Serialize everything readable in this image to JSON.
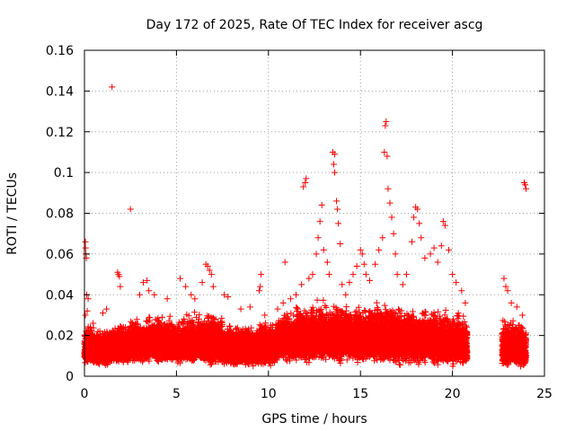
{
  "chart_data": {
    "type": "scatter",
    "title": "Day 172 of 2025, Rate Of TEC Index for receiver ascg",
    "xlabel": "GPS time / hours",
    "ylabel": "ROTI / TECUs",
    "xlim": [
      0,
      25
    ],
    "ylim": [
      0,
      0.16
    ],
    "xticks": [
      "0",
      "5",
      "10",
      "15",
      "20",
      "25"
    ],
    "yticks": [
      "0",
      "0.02",
      "0.04",
      "0.06",
      "0.08",
      "0.1",
      "0.12",
      "0.14",
      "0.16"
    ],
    "xtick_values": [
      0,
      5,
      10,
      15,
      20,
      25
    ],
    "ytick_values": [
      0,
      0.02,
      0.04,
      0.06,
      0.08,
      0.1,
      0.12,
      0.14,
      0.16
    ],
    "grid": true,
    "marker": "+",
    "color": "#ff0000",
    "series": [
      {
        "points": [
          [
            0.05,
            0.066
          ],
          [
            0.06,
            0.063
          ],
          [
            0.08,
            0.06
          ],
          [
            0.1,
            0.058
          ],
          [
            0.12,
            0.04
          ],
          [
            0.2,
            0.038
          ],
          [
            0.15,
            0.032
          ],
          [
            0.05,
            0.03
          ],
          [
            1.0,
            0.031
          ],
          [
            1.2,
            0.033
          ],
          [
            1.5,
            0.142
          ],
          [
            1.8,
            0.051
          ],
          [
            1.85,
            0.05
          ],
          [
            1.9,
            0.049
          ],
          [
            1.95,
            0.044
          ],
          [
            2.5,
            0.082
          ],
          [
            3.0,
            0.04
          ],
          [
            3.2,
            0.046
          ],
          [
            3.4,
            0.047
          ],
          [
            3.5,
            0.042
          ],
          [
            3.8,
            0.04
          ],
          [
            4.5,
            0.038
          ],
          [
            5.2,
            0.048
          ],
          [
            5.5,
            0.044
          ],
          [
            5.8,
            0.04
          ],
          [
            6.0,
            0.038
          ],
          [
            6.4,
            0.046
          ],
          [
            6.6,
            0.055
          ],
          [
            6.7,
            0.054
          ],
          [
            6.8,
            0.052
          ],
          [
            6.9,
            0.05
          ],
          [
            7.0,
            0.044
          ],
          [
            7.6,
            0.04
          ],
          [
            7.8,
            0.039
          ],
          [
            8.5,
            0.033
          ],
          [
            9.0,
            0.034
          ],
          [
            9.5,
            0.042
          ],
          [
            9.55,
            0.044
          ],
          [
            9.6,
            0.05
          ],
          [
            9.8,
            0.03
          ],
          [
            10.5,
            0.033
          ],
          [
            10.8,
            0.036
          ],
          [
            10.9,
            0.056
          ],
          [
            11.2,
            0.038
          ],
          [
            11.5,
            0.04
          ],
          [
            11.8,
            0.045
          ],
          [
            11.9,
            0.093
          ],
          [
            12.0,
            0.095
          ],
          [
            12.05,
            0.097
          ],
          [
            12.2,
            0.048
          ],
          [
            12.4,
            0.05
          ],
          [
            12.6,
            0.06
          ],
          [
            12.7,
            0.068
          ],
          [
            12.8,
            0.076
          ],
          [
            12.9,
            0.084
          ],
          [
            13.0,
            0.062
          ],
          [
            13.2,
            0.056
          ],
          [
            13.3,
            0.05
          ],
          [
            13.5,
            0.11
          ],
          [
            13.6,
            0.109
          ],
          [
            13.55,
            0.104
          ],
          [
            13.6,
            0.1
          ],
          [
            13.7,
            0.086
          ],
          [
            13.75,
            0.082
          ],
          [
            13.8,
            0.075
          ],
          [
            13.9,
            0.065
          ],
          [
            14.0,
            0.045
          ],
          [
            14.2,
            0.04
          ],
          [
            14.4,
            0.046
          ],
          [
            14.6,
            0.05
          ],
          [
            14.8,
            0.054
          ],
          [
            15.0,
            0.062
          ],
          [
            15.1,
            0.06
          ],
          [
            15.2,
            0.055
          ],
          [
            15.3,
            0.05
          ],
          [
            15.5,
            0.047
          ],
          [
            15.8,
            0.055
          ],
          [
            16.0,
            0.062
          ],
          [
            16.2,
            0.068
          ],
          [
            16.3,
            0.11
          ],
          [
            16.35,
            0.123
          ],
          [
            16.4,
            0.125
          ],
          [
            16.45,
            0.108
          ],
          [
            16.5,
            0.092
          ],
          [
            16.6,
            0.085
          ],
          [
            16.7,
            0.078
          ],
          [
            16.8,
            0.07
          ],
          [
            16.9,
            0.06
          ],
          [
            17.0,
            0.05
          ],
          [
            17.3,
            0.045
          ],
          [
            17.5,
            0.05
          ],
          [
            17.8,
            0.066
          ],
          [
            17.9,
            0.078
          ],
          [
            18.0,
            0.083
          ],
          [
            18.1,
            0.082
          ],
          [
            18.2,
            0.075
          ],
          [
            18.3,
            0.068
          ],
          [
            18.5,
            0.058
          ],
          [
            18.8,
            0.06
          ],
          [
            19.0,
            0.063
          ],
          [
            19.2,
            0.056
          ],
          [
            19.4,
            0.064
          ],
          [
            19.5,
            0.076
          ],
          [
            19.6,
            0.074
          ],
          [
            19.8,
            0.062
          ],
          [
            20.0,
            0.05
          ],
          [
            20.2,
            0.046
          ],
          [
            20.5,
            0.042
          ],
          [
            20.7,
            0.036
          ],
          [
            22.8,
            0.048
          ],
          [
            22.9,
            0.044
          ],
          [
            23.0,
            0.042
          ],
          [
            23.2,
            0.036
          ],
          [
            23.5,
            0.034
          ],
          [
            23.8,
            0.03
          ],
          [
            23.9,
            0.095
          ],
          [
            23.95,
            0.094
          ],
          [
            24.0,
            0.092
          ]
        ]
      }
    ],
    "bands": [
      [
        0.0,
        0.5,
        0.006,
        0.028,
        0.012
      ],
      [
        0.5,
        1.5,
        0.004,
        0.025,
        0.012
      ],
      [
        1.5,
        2.5,
        0.006,
        0.027,
        0.013
      ],
      [
        2.5,
        3.5,
        0.006,
        0.03,
        0.014
      ],
      [
        3.5,
        4.5,
        0.006,
        0.031,
        0.015
      ],
      [
        4.5,
        5.5,
        0.006,
        0.03,
        0.014
      ],
      [
        5.5,
        6.5,
        0.006,
        0.032,
        0.015
      ],
      [
        6.5,
        7.5,
        0.005,
        0.033,
        0.015
      ],
      [
        7.5,
        8.5,
        0.004,
        0.026,
        0.013
      ],
      [
        8.5,
        9.5,
        0.004,
        0.026,
        0.013
      ],
      [
        9.5,
        10.5,
        0.004,
        0.028,
        0.014
      ],
      [
        10.5,
        11.5,
        0.006,
        0.033,
        0.017
      ],
      [
        11.5,
        12.5,
        0.006,
        0.036,
        0.018
      ],
      [
        12.5,
        13.5,
        0.006,
        0.038,
        0.019
      ],
      [
        13.5,
        14.5,
        0.005,
        0.036,
        0.019
      ],
      [
        14.5,
        15.5,
        0.006,
        0.036,
        0.018
      ],
      [
        15.5,
        16.5,
        0.005,
        0.038,
        0.019
      ],
      [
        16.5,
        17.5,
        0.004,
        0.036,
        0.018
      ],
      [
        17.5,
        18.5,
        0.004,
        0.034,
        0.017
      ],
      [
        18.5,
        19.5,
        0.005,
        0.034,
        0.016
      ],
      [
        19.5,
        20.4,
        0.004,
        0.033,
        0.016
      ],
      [
        20.4,
        20.8,
        0.004,
        0.03,
        0.015
      ],
      [
        22.7,
        23.5,
        0.004,
        0.029,
        0.013
      ],
      [
        23.5,
        24.0,
        0.004,
        0.028,
        0.012
      ]
    ]
  }
}
